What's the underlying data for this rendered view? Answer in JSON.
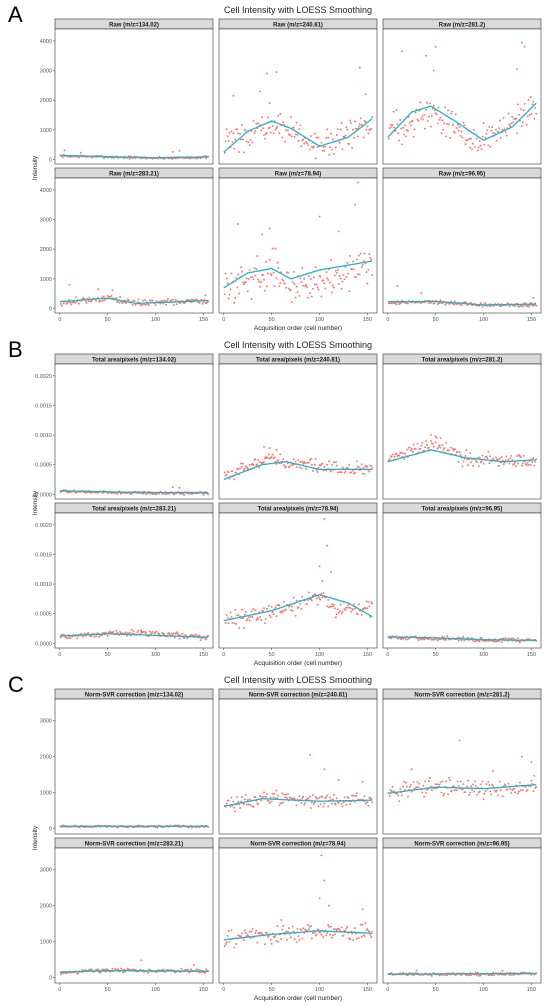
{
  "colors": {
    "points": "#F8766D",
    "smooth": "#1FB4C8",
    "strip_bg": "#D9D9D9",
    "panel_border": "#333333"
  },
  "chart_data": [
    {
      "letter": "A",
      "type": "scatter",
      "title": "Cell Intensity with LOESS Smoothing",
      "xlabel": "Acquisition order (cell number)",
      "ylabel": "Intensity",
      "xlim": [
        -5,
        160
      ],
      "ylim": [
        -150,
        4400
      ],
      "xticks": [
        0,
        50,
        100,
        150
      ],
      "yticks": [
        0,
        1000,
        2000,
        3000,
        4000
      ],
      "ytick_labels": [
        "0",
        "1000",
        "2000",
        "3000",
        "4000"
      ],
      "facets": [
        {
          "label": "Raw (m/z=134.02)",
          "base": [
            [
              0,
              120
            ],
            [
              50,
              90
            ],
            [
              100,
              50
            ],
            [
              155,
              80
            ]
          ],
          "smooth": [
            [
              0,
              140
            ],
            [
              50,
              95
            ],
            [
              100,
              60
            ],
            [
              155,
              90
            ]
          ],
          "jitter": 35,
          "outliers": [
            [
              5,
              310
            ],
            [
              22,
              230
            ],
            [
              118,
              260
            ],
            [
              125,
              300
            ]
          ]
        },
        {
          "label": "Raw (m/z=240.81)",
          "base": [
            [
              0,
              500
            ],
            [
              30,
              900
            ],
            [
              55,
              1200
            ],
            [
              75,
              800
            ],
            [
              100,
              500
            ],
            [
              155,
              1100
            ]
          ],
          "smooth": [
            [
              0,
              250
            ],
            [
              25,
              950
            ],
            [
              50,
              1300
            ],
            [
              70,
              1050
            ],
            [
              100,
              450
            ],
            [
              130,
              750
            ],
            [
              155,
              1380
            ]
          ],
          "jitter": 380,
          "outliers": [
            [
              10,
              2150
            ],
            [
              38,
              2300
            ],
            [
              45,
              2900
            ],
            [
              55,
              2950
            ],
            [
              48,
              1900
            ],
            [
              142,
              3100
            ],
            [
              148,
              2200
            ]
          ]
        },
        {
          "label": "Raw (m/z=281.2)",
          "base": [
            [
              0,
              1000
            ],
            [
              45,
              1600
            ],
            [
              75,
              1000
            ],
            [
              100,
              650
            ],
            [
              155,
              1600
            ]
          ],
          "smooth": [
            [
              0,
              750
            ],
            [
              25,
              1600
            ],
            [
              45,
              1800
            ],
            [
              70,
              1300
            ],
            [
              100,
              650
            ],
            [
              130,
              1100
            ],
            [
              155,
              1900
            ]
          ],
          "jitter": 480,
          "outliers": [
            [
              15,
              3650
            ],
            [
              40,
              3500
            ],
            [
              50,
              3800
            ],
            [
              48,
              3000
            ],
            [
              140,
              3950
            ],
            [
              143,
              3800
            ],
            [
              135,
              3050
            ]
          ]
        },
        {
          "label": "Raw (m/z=283.21)",
          "base": [
            [
              0,
              200
            ],
            [
              50,
              330
            ],
            [
              80,
              180
            ],
            [
              155,
              240
            ]
          ],
          "smooth": [
            [
              0,
              230
            ],
            [
              50,
              350
            ],
            [
              80,
              170
            ],
            [
              155,
              270
            ]
          ],
          "jitter": 90,
          "outliers": [
            [
              10,
              800
            ],
            [
              40,
              650
            ],
            [
              55,
              620
            ],
            [
              152,
              450
            ]
          ]
        },
        {
          "label": "Raw (m/z=78.94)",
          "base": [
            [
              0,
              700
            ],
            [
              50,
              1300
            ],
            [
              75,
              800
            ],
            [
              100,
              900
            ],
            [
              155,
              1600
            ]
          ],
          "smooth": [
            [
              0,
              700
            ],
            [
              25,
              1200
            ],
            [
              50,
              1350
            ],
            [
              70,
              1000
            ],
            [
              100,
              1300
            ],
            [
              155,
              1600
            ]
          ],
          "jitter": 500,
          "outliers": [
            [
              15,
              2850
            ],
            [
              40,
              2500
            ],
            [
              48,
              2700
            ],
            [
              100,
              3100
            ],
            [
              140,
              4250
            ],
            [
              137,
              3500
            ],
            [
              120,
              2600
            ]
          ]
        },
        {
          "label": "Raw (m/z=96.95)",
          "base": [
            [
              0,
              200
            ],
            [
              50,
              220
            ],
            [
              100,
              110
            ],
            [
              155,
              140
            ]
          ],
          "smooth": [
            [
              0,
              230
            ],
            [
              50,
              240
            ],
            [
              100,
              120
            ],
            [
              155,
              150
            ]
          ],
          "jitter": 60,
          "outliers": [
            [
              10,
              760
            ],
            [
              35,
              520
            ],
            [
              152,
              360
            ]
          ]
        }
      ]
    },
    {
      "letter": "B",
      "type": "scatter",
      "title": "Cell Intensity with LOESS Smoothing",
      "xlabel": "Acquisition order (cell number)",
      "ylabel": "Intensity",
      "xlim": [
        -5,
        160
      ],
      "ylim": [
        -8e-05,
        0.0022
      ],
      "xticks": [
        0,
        50,
        100,
        150
      ],
      "yticks": [
        0,
        0.0005,
        0.001,
        0.0015,
        0.002
      ],
      "ytick_labels": [
        "0.0000",
        "0.0005",
        "0.0010",
        "0.0015",
        "0.0020"
      ],
      "facets": [
        {
          "label": "Total area/pixels (m/z=134.02)",
          "base": [
            [
              0,
              5e-05
            ],
            [
              50,
              3e-05
            ],
            [
              100,
              2e-05
            ],
            [
              155,
              2e-05
            ]
          ],
          "smooth": [
            [
              0,
              6e-05
            ],
            [
              50,
              4e-05
            ],
            [
              100,
              3e-05
            ],
            [
              155,
              3e-05
            ]
          ],
          "jitter": 2e-05,
          "outliers": [
            [
              118,
              0.00012
            ],
            [
              125,
              0.00011
            ]
          ]
        },
        {
          "label": "Total area/pixels (m/z=240.81)",
          "base": [
            [
              0,
              0.0003
            ],
            [
              45,
              0.0006
            ],
            [
              75,
              0.0005
            ],
            [
              110,
              0.00045
            ],
            [
              155,
              0.00042
            ]
          ],
          "smooth": [
            [
              0,
              0.00025
            ],
            [
              40,
              0.0005
            ],
            [
              65,
              0.00055
            ],
            [
              100,
              0.00042
            ],
            [
              155,
              0.00042
            ]
          ],
          "jitter": 9e-05,
          "outliers": [
            [
              42,
              0.0008
            ],
            [
              48,
              0.00078
            ],
            [
              55,
              0.00075
            ]
          ]
        },
        {
          "label": "Total area/pixels (m/z=281.2)",
          "base": [
            [
              0,
              0.0006
            ],
            [
              50,
              0.00085
            ],
            [
              80,
              0.0006
            ],
            [
              155,
              0.00055
            ]
          ],
          "smooth": [
            [
              0,
              0.00055
            ],
            [
              45,
              0.00075
            ],
            [
              80,
              0.00062
            ],
            [
              120,
              0.00055
            ],
            [
              155,
              0.00058
            ]
          ],
          "jitter": 0.0001,
          "outliers": [
            [
              45,
              0.001
            ],
            [
              50,
              0.00098
            ],
            [
              55,
              0.00095
            ]
          ]
        },
        {
          "label": "Total area/pixels (m/z=283.21)",
          "base": [
            [
              0,
              0.00011
            ],
            [
              50,
              0.00017
            ],
            [
              90,
              0.00017
            ],
            [
              155,
              0.0001
            ]
          ],
          "smooth": [
            [
              0,
              0.00012
            ],
            [
              50,
              0.00016
            ],
            [
              90,
              0.00014
            ],
            [
              155,
              0.0001
            ]
          ],
          "jitter": 4e-05,
          "outliers": [
            [
              75,
              0.00023
            ],
            [
              85,
              0.00022
            ]
          ]
        },
        {
          "label": "Total area/pixels (m/z=78.94)",
          "base": [
            [
              0,
              0.0004
            ],
            [
              50,
              0.0005
            ],
            [
              100,
              0.0008
            ],
            [
              115,
              0.0006
            ],
            [
              155,
              0.00058
            ]
          ],
          "smooth": [
            [
              0,
              0.00038
            ],
            [
              50,
              0.00055
            ],
            [
              100,
              0.00082
            ],
            [
              130,
              0.00068
            ],
            [
              155,
              0.00045
            ]
          ],
          "jitter": 0.00012,
          "outliers": [
            [
              105,
              0.0021
            ],
            [
              108,
              0.00165
            ],
            [
              100,
              0.0013
            ],
            [
              112,
              0.0012
            ],
            [
              103,
              0.00105
            ]
          ]
        },
        {
          "label": "Total area/pixels (m/z=96.95)",
          "base": [
            [
              0,
              0.0001
            ],
            [
              50,
              8e-05
            ],
            [
              100,
              6e-05
            ],
            [
              155,
              5e-05
            ]
          ],
          "smooth": [
            [
              0,
              0.00011
            ],
            [
              50,
              9e-05
            ],
            [
              100,
              6e-05
            ],
            [
              155,
              5e-05
            ]
          ],
          "jitter": 3e-05,
          "outliers": []
        }
      ]
    },
    {
      "letter": "C",
      "type": "scatter",
      "title": "Cell Intensity with LOESS Smoothing",
      "xlabel": "Acquisition order (cell number)",
      "ylabel": "Intensity",
      "xlim": [
        -5,
        160
      ],
      "ylim": [
        -150,
        3600
      ],
      "xticks": [
        0,
        50,
        100,
        150
      ],
      "yticks": [
        0,
        1000,
        2000,
        3000
      ],
      "ytick_labels": [
        "0",
        "1000",
        "2000",
        "3000"
      ],
      "facets": [
        {
          "label": "Norm-SVR correction (m/z=134.02)",
          "base": [
            [
              0,
              60
            ],
            [
              155,
              60
            ]
          ],
          "smooth": [
            [
              0,
              65
            ],
            [
              155,
              65
            ]
          ],
          "jitter": 25,
          "outliers": []
        },
        {
          "label": "Norm-SVR correction (m/z=240.81)",
          "base": [
            [
              0,
              650
            ],
            [
              40,
              850
            ],
            [
              100,
              750
            ],
            [
              155,
              780
            ]
          ],
          "smooth": [
            [
              0,
              620
            ],
            [
              40,
              830
            ],
            [
              100,
              760
            ],
            [
              155,
              790
            ]
          ],
          "jitter": 160,
          "outliers": [
            [
              90,
              2050
            ],
            [
              105,
              1650
            ],
            [
              120,
              1350
            ],
            [
              145,
              1300
            ]
          ]
        },
        {
          "label": "Norm-SVR correction (m/z=281.2)",
          "base": [
            [
              0,
              1000
            ],
            [
              50,
              1150
            ],
            [
              100,
              1100
            ],
            [
              155,
              1200
            ]
          ],
          "smooth": [
            [
              0,
              980
            ],
            [
              50,
              1150
            ],
            [
              100,
              1110
            ],
            [
              155,
              1220
            ]
          ],
          "jitter": 200,
          "outliers": [
            [
              75,
              2450
            ],
            [
              140,
              2000
            ],
            [
              150,
              1850
            ],
            [
              110,
              1600
            ],
            [
              25,
              1650
            ]
          ]
        },
        {
          "label": "Norm-SVR correction (m/z=283.21)",
          "base": [
            [
              0,
              140
            ],
            [
              50,
              200
            ],
            [
              155,
              180
            ]
          ],
          "smooth": [
            [
              0,
              150
            ],
            [
              50,
              195
            ],
            [
              155,
              175
            ]
          ],
          "jitter": 45,
          "outliers": [
            [
              85,
              480
            ],
            [
              140,
              350
            ]
          ]
        },
        {
          "label": "Norm-SVR correction (m/z=78.94)",
          "base": [
            [
              0,
              1100
            ],
            [
              50,
              1200
            ],
            [
              100,
              1250
            ],
            [
              155,
              1250
            ]
          ],
          "smooth": [
            [
              0,
              1050
            ],
            [
              50,
              1200
            ],
            [
              100,
              1300
            ],
            [
              155,
              1230
            ]
          ],
          "jitter": 220,
          "outliers": [
            [
              102,
              3400
            ],
            [
              105,
              2700
            ],
            [
              100,
              2200
            ],
            [
              110,
              2000
            ],
            [
              145,
              1900
            ],
            [
              60,
              1600
            ]
          ]
        },
        {
          "label": "Norm-SVR correction (m/z=96.95)",
          "base": [
            [
              0,
              90
            ],
            [
              155,
              110
            ]
          ],
          "smooth": [
            [
              0,
              95
            ],
            [
              155,
              115
            ]
          ],
          "jitter": 35,
          "outliers": [
            [
              30,
              200
            ],
            [
              120,
              190
            ]
          ]
        }
      ]
    }
  ]
}
